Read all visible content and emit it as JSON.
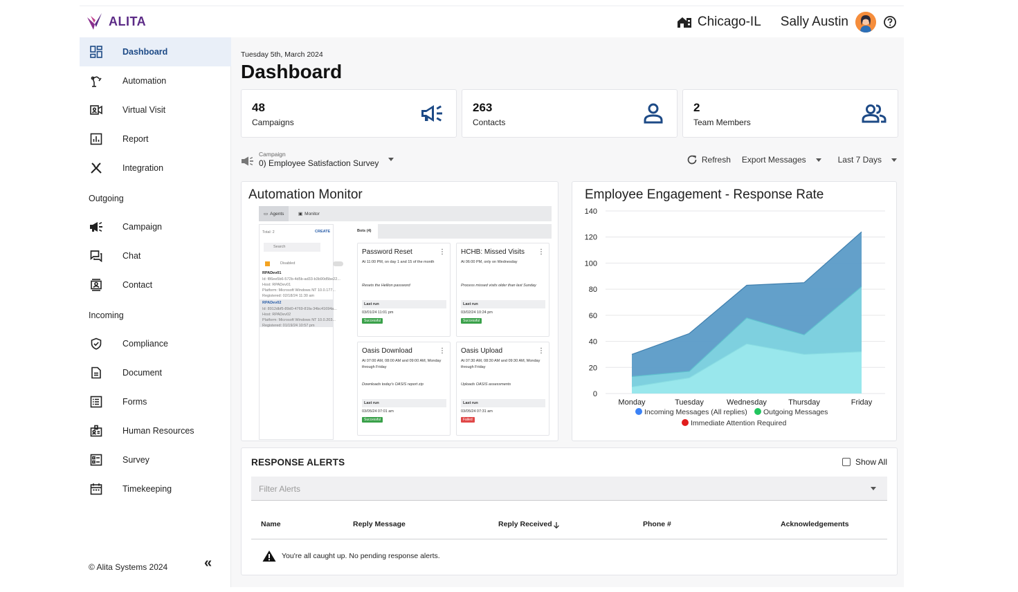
{
  "app": {
    "logo_text": "ALITA"
  },
  "topbar": {
    "location": "Chicago-IL",
    "user_name": "Sally Austin"
  },
  "sidebar": {
    "items": [
      {
        "label": "Dashboard",
        "icon": "dashboard-icon"
      },
      {
        "label": "Automation",
        "icon": "robot-arm-icon"
      },
      {
        "label": "Virtual Visit",
        "icon": "video-icon"
      },
      {
        "label": "Report",
        "icon": "report-icon"
      },
      {
        "label": "Integration",
        "icon": "tools-icon"
      }
    ],
    "outgoing_header": "Outgoing",
    "outgoing": [
      {
        "label": "Campaign",
        "icon": "megaphone-icon"
      },
      {
        "label": "Chat",
        "icon": "chat-icon"
      },
      {
        "label": "Contact",
        "icon": "contact-icon"
      }
    ],
    "incoming_header": "Incoming",
    "incoming": [
      {
        "label": "Compliance",
        "icon": "shield-check-icon"
      },
      {
        "label": "Document",
        "icon": "document-icon"
      },
      {
        "label": "Forms",
        "icon": "list-icon"
      },
      {
        "label": "Human Resources",
        "icon": "badge-icon"
      },
      {
        "label": "Survey",
        "icon": "survey-icon"
      },
      {
        "label": "Timekeeping",
        "icon": "calendar-icon"
      }
    ],
    "copyright": "© Alita Systems 2024",
    "collapse_label": "«"
  },
  "main": {
    "date": "Tuesday 5th, March 2024",
    "title": "Dashboard",
    "stats": [
      {
        "value": "48",
        "label": "Campaigns"
      },
      {
        "value": "263",
        "label": "Contacts"
      },
      {
        "value": "2",
        "label": "Team Members"
      }
    ],
    "campaign": {
      "small_label": "Campaign",
      "value": "0) Employee Satisfaction Survey"
    },
    "refresh": "Refresh",
    "export": "Export Messages",
    "range": "Last 7 Days"
  },
  "automation_monitor": {
    "title": "Automation Monitor",
    "tabs": [
      "Agents",
      "Monitor"
    ],
    "total": "Total: 2",
    "create": "CREATE",
    "search": "Search",
    "bots_tab": "Bots (4)",
    "disabled": "Disabled",
    "agents": [
      {
        "name": "RPADev01",
        "id": "Id: f86ee5b6-572b-4d5b-ad33-b3b90d5be22...",
        "host": "Host: RPADev01",
        "platform": "Platform: Microsoft Windows NT 10.0.177...",
        "registered": "Registered: 02/18/24 11:30 am"
      },
      {
        "name": "RPADev02",
        "id": "Id: 8912dbf5-89d0-4769-81fa-34bc41694a...",
        "host": "Host: RPADev02",
        "platform": "Platform: Microsoft Windows NT 10.0.203...",
        "registered": "Registered: 01/19/24 10:57 pm"
      }
    ],
    "bots": [
      {
        "name": "Password Reset",
        "schedule": "At 11:00 PM, on day 1 and 15 of the month",
        "description": "Resets the Hellion password",
        "last_run_label": "Last run",
        "last_run": "03/01/24 11:01 pm",
        "status": "Successful"
      },
      {
        "name": "HCHB: Missed Visits",
        "schedule": "At 06:00 PM, only on Wednesday",
        "description": "Process missed visits older than last Sunday",
        "last_run_label": "Last run",
        "last_run": "03/02/24 10:24 pm",
        "status": "Successful"
      },
      {
        "name": "Oasis Download",
        "schedule": "At 07:00 AM, 08:00 AM and 09:00 AM, Monday through Friday",
        "description": "Downloads today's OASIS report zip",
        "last_run_label": "Last run",
        "last_run": "03/05/24 07:01 am",
        "status": "Successful"
      },
      {
        "name": "Oasis Upload",
        "schedule": "At 07:30 AM, 08:30 AM and 09:30 AM, Monday through Friday",
        "description": "Uploads OASIS assessments",
        "last_run_label": "Last run",
        "last_run": "03/05/24 07:31 am",
        "status": "Failed"
      }
    ]
  },
  "chart_data": {
    "type": "area",
    "title": "Employee Engagement - Response Rate",
    "categories": [
      "Monday",
      "Tuesday",
      "Wednesday",
      "Thursday",
      "Friday"
    ],
    "ylim": [
      0,
      140
    ],
    "yticks": [
      0,
      20,
      40,
      60,
      80,
      100,
      120,
      140
    ],
    "grid": true,
    "legend_position": "bottom",
    "series": [
      {
        "name": "Incoming Messages (All replies)",
        "values": [
          30,
          46,
          83,
          85,
          124
        ],
        "color": "#5b9bc7"
      },
      {
        "name": "Outgoing Messages",
        "values": [
          13,
          17,
          58,
          45,
          82
        ],
        "color": "#7fd3df"
      },
      {
        "name": "Immediate Attention Required",
        "values": [
          5,
          12,
          38,
          30,
          32
        ],
        "color": "#9be8ec"
      }
    ],
    "legend_colors": [
      "#3b82f6",
      "#22c55e",
      "#e11d1d"
    ]
  },
  "response_alerts": {
    "title": "RESPONSE ALERTS",
    "show_all": "Show All",
    "filter_placeholder": "Filter Alerts",
    "columns": [
      "Name",
      "Reply Message",
      "Reply Received",
      "Phone #",
      "Acknowledgements"
    ],
    "empty_message": "You're all caught up. No pending response alerts."
  },
  "colors": {
    "accent": "#1d4a86",
    "brand": "#5b2a86",
    "active_bg": "#e9eff8"
  }
}
